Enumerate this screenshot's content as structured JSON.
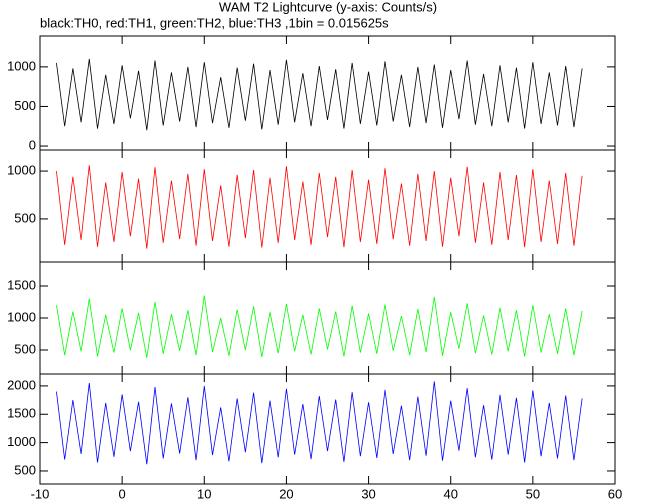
{
  "title": "WAM T2 Lightcurve (y-axis: Counts/s)",
  "subtitle": "black:TH0, red:TH1, green:TH2, blue:TH3 ,1bin = 0.015625s",
  "chart_data": [
    {
      "type": "line",
      "xlim": [
        -10,
        60
      ],
      "xticks": [
        -10,
        0,
        10,
        20,
        30,
        40,
        50,
        60
      ],
      "ylim": [
        -50,
        1390
      ],
      "yticks": [
        0,
        500,
        1000
      ],
      "x": [
        -8,
        -7,
        -6,
        -5,
        -4,
        -3,
        -2,
        -1,
        0,
        1,
        2,
        3,
        4,
        5,
        6,
        7,
        8,
        9,
        10,
        11,
        12,
        13,
        14,
        15,
        16,
        17,
        18,
        19,
        20,
        21,
        22,
        23,
        24,
        25,
        26,
        27,
        28,
        29,
        30,
        31,
        32,
        33,
        34,
        35,
        36,
        37,
        38,
        39,
        40,
        41,
        42,
        43,
        44,
        45,
        46,
        47,
        48,
        49,
        50,
        51,
        52,
        53,
        54,
        55,
        56
      ],
      "series": [
        {
          "color": "#000000",
          "values": [
            1050,
            250,
            980,
            300,
            1100,
            220,
            900,
            280,
            1020,
            350,
            950,
            200,
            1080,
            260,
            930,
            310,
            1000,
            240,
            1060,
            290,
            870,
            230,
            990,
            320,
            1040,
            210,
            960,
            270,
            1090,
            300,
            920,
            250,
            1010,
            330,
            970,
            220,
            1050,
            280,
            940,
            260,
            1070,
            310,
            900,
            240,
            1000,
            290,
            1030,
            230,
            960,
            340,
            1080,
            270,
            910,
            250,
            1020,
            300,
            990,
            220,
            1060,
            280,
            930,
            260,
            1010,
            240,
            980
          ]
        }
      ]
    },
    {
      "type": "line",
      "xlim": [
        -10,
        60
      ],
      "xticks": [
        -10,
        0,
        10,
        20,
        30,
        40,
        50,
        60
      ],
      "ylim": [
        50,
        1220
      ],
      "yticks": [
        500,
        1000
      ],
      "x": [
        -8,
        -7,
        -6,
        -5,
        -4,
        -3,
        -2,
        -1,
        0,
        1,
        2,
        3,
        4,
        5,
        6,
        7,
        8,
        9,
        10,
        11,
        12,
        13,
        14,
        15,
        16,
        17,
        18,
        19,
        20,
        21,
        22,
        23,
        24,
        25,
        26,
        27,
        28,
        29,
        30,
        31,
        32,
        33,
        34,
        35,
        36,
        37,
        38,
        39,
        40,
        41,
        42,
        43,
        44,
        45,
        46,
        47,
        48,
        49,
        50,
        51,
        52,
        53,
        54,
        55,
        56
      ],
      "series": [
        {
          "color": "#ff0000",
          "values": [
            1000,
            230,
            940,
            280,
            1060,
            210,
            880,
            260,
            990,
            320,
            920,
            190,
            1040,
            250,
            900,
            290,
            970,
            220,
            1020,
            270,
            850,
            210,
            960,
            300,
            1010,
            200,
            930,
            250,
            1050,
            280,
            890,
            230,
            980,
            310,
            940,
            205,
            1010,
            260,
            910,
            240,
            1030,
            290,
            870,
            220,
            970,
            270,
            1000,
            210,
            930,
            320,
            1045,
            250,
            880,
            230,
            990,
            280,
            960,
            205,
            1020,
            260,
            900,
            240,
            980,
            220,
            950
          ]
        }
      ]
    },
    {
      "type": "line",
      "xlim": [
        -10,
        60
      ],
      "xticks": [
        -10,
        0,
        10,
        20,
        30,
        40,
        50,
        60
      ],
      "ylim": [
        125,
        1875
      ],
      "yticks": [
        500,
        1000,
        1500
      ],
      "x": [
        -8,
        -7,
        -6,
        -5,
        -4,
        -3,
        -2,
        -1,
        0,
        1,
        2,
        3,
        4,
        5,
        6,
        7,
        8,
        9,
        10,
        11,
        12,
        13,
        14,
        15,
        16,
        17,
        18,
        19,
        20,
        21,
        22,
        23,
        24,
        25,
        26,
        27,
        28,
        29,
        30,
        31,
        32,
        33,
        34,
        35,
        36,
        37,
        38,
        39,
        40,
        41,
        42,
        43,
        44,
        45,
        46,
        47,
        48,
        49,
        50,
        51,
        52,
        53,
        54,
        55,
        56
      ],
      "series": [
        {
          "color": "#00ff00",
          "values": [
            1200,
            420,
            1100,
            480,
            1300,
            400,
            1050,
            460,
            1150,
            500,
            1080,
            380,
            1250,
            440,
            1060,
            490,
            1120,
            420,
            1350,
            470,
            1000,
            410,
            1130,
            500,
            1180,
            390,
            1090,
            450,
            1220,
            480,
            1050,
            430,
            1150,
            510,
            1100,
            400,
            1190,
            460,
            1070,
            440,
            1210,
            490,
            1030,
            420,
            1140,
            470,
            1330,
            410,
            1090,
            520,
            1230,
            450,
            1040,
            430,
            1160,
            480,
            1120,
            400,
            1200,
            460,
            1060,
            440,
            1150,
            420,
            1110
          ]
        }
      ]
    },
    {
      "type": "line",
      "xlim": [
        -10,
        60
      ],
      "xticks": [
        -10,
        0,
        10,
        20,
        30,
        40,
        50,
        60
      ],
      "ylim": [
        270,
        2210
      ],
      "yticks": [
        500,
        1000,
        1500,
        2000
      ],
      "x": [
        -8,
        -7,
        -6,
        -5,
        -4,
        -3,
        -2,
        -1,
        0,
        1,
        2,
        3,
        4,
        5,
        6,
        7,
        8,
        9,
        10,
        11,
        12,
        13,
        14,
        15,
        16,
        17,
        18,
        19,
        20,
        21,
        22,
        23,
        24,
        25,
        26,
        27,
        28,
        29,
        30,
        31,
        32,
        33,
        34,
        35,
        36,
        37,
        38,
        39,
        40,
        41,
        42,
        43,
        44,
        45,
        46,
        47,
        48,
        49,
        50,
        51,
        52,
        53,
        54,
        55,
        56
      ],
      "series": [
        {
          "color": "#0000ff",
          "values": [
            1900,
            700,
            1750,
            800,
            2050,
            650,
            1700,
            750,
            1850,
            850,
            1720,
            620,
            1980,
            720,
            1690,
            810,
            1800,
            690,
            2000,
            780,
            1620,
            670,
            1780,
            830,
            1880,
            640,
            1740,
            740,
            1950,
            790,
            1680,
            710,
            1820,
            850,
            1760,
            660,
            1890,
            760,
            1710,
            730,
            1930,
            800,
            1650,
            690,
            1810,
            770,
            2080,
            680,
            1740,
            860,
            1960,
            740,
            1660,
            700,
            1840,
            790,
            1790,
            650,
            1920,
            760,
            1700,
            720,
            1830,
            690,
            1780
          ]
        }
      ]
    }
  ]
}
